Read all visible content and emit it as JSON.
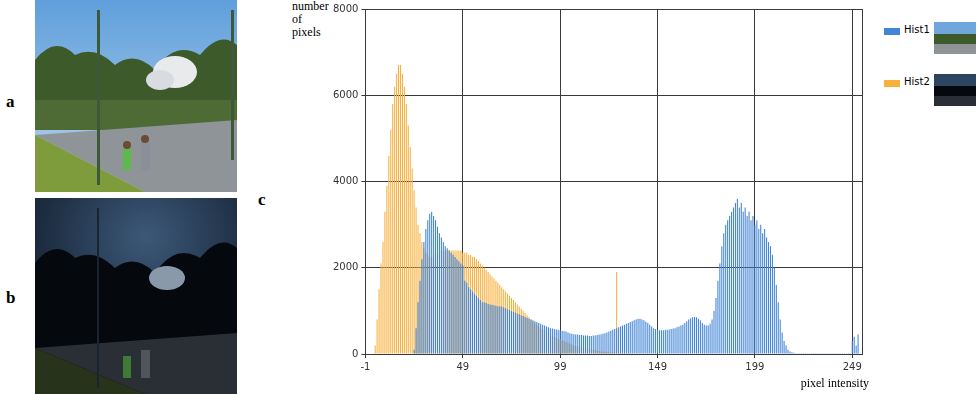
{
  "figure": {
    "panel_labels": [
      "a",
      "b",
      "c"
    ]
  },
  "chart_data": {
    "type": "bar",
    "xlabel": "pixel intensity",
    "ylabel": "number of pixels",
    "xlim": [
      -1,
      254
    ],
    "xticks": [
      -1,
      49,
      99,
      149,
      199,
      249
    ],
    "ylim": [
      0,
      8000
    ],
    "yticks": [
      0,
      2000,
      4000,
      6000,
      8000
    ],
    "grid": true,
    "legend": "top right",
    "x": [
      0,
      1,
      2,
      3,
      4,
      5,
      6,
      7,
      8,
      9,
      10,
      11,
      12,
      13,
      14,
      15,
      16,
      17,
      18,
      19,
      20,
      21,
      22,
      23,
      24,
      25,
      26,
      27,
      28,
      29,
      30,
      31,
      32,
      33,
      34,
      35,
      36,
      37,
      38,
      39,
      40,
      41,
      42,
      43,
      44,
      45,
      46,
      47,
      48,
      49,
      50,
      51,
      52,
      53,
      54,
      55,
      56,
      57,
      58,
      59,
      60,
      61,
      62,
      63,
      64,
      65,
      66,
      67,
      68,
      69,
      70,
      71,
      72,
      73,
      74,
      75,
      76,
      77,
      78,
      79,
      80,
      81,
      82,
      83,
      84,
      85,
      86,
      87,
      88,
      89,
      90,
      91,
      92,
      93,
      94,
      95,
      96,
      97,
      98,
      99,
      100,
      101,
      102,
      103,
      104,
      105,
      106,
      107,
      108,
      109,
      110,
      111,
      112,
      113,
      114,
      115,
      116,
      117,
      118,
      119,
      120,
      121,
      122,
      123,
      124,
      125,
      126,
      127,
      128,
      129,
      130,
      131,
      132,
      133,
      134,
      135,
      136,
      137,
      138,
      139,
      140,
      141,
      142,
      143,
      144,
      145,
      146,
      147,
      148,
      149,
      150,
      151,
      152,
      153,
      154,
      155,
      156,
      157,
      158,
      159,
      160,
      161,
      162,
      163,
      164,
      165,
      166,
      167,
      168,
      169,
      170,
      171,
      172,
      173,
      174,
      175,
      176,
      177,
      178,
      179,
      180,
      181,
      182,
      183,
      184,
      185,
      186,
      187,
      188,
      189,
      190,
      191,
      192,
      193,
      194,
      195,
      196,
      197,
      198,
      199,
      200,
      201,
      202,
      203,
      204,
      205,
      206,
      207,
      208,
      209,
      210,
      211,
      212,
      213,
      214,
      215,
      216,
      217,
      218,
      219,
      220,
      221,
      222,
      223,
      224,
      225,
      226,
      227,
      228,
      229,
      230,
      231,
      232,
      233,
      234,
      235,
      236,
      237,
      238,
      239,
      240,
      241,
      242,
      243,
      244,
      245,
      246,
      247,
      248,
      249,
      250,
      251,
      252,
      253,
      254,
      255
    ],
    "series": [
      {
        "name": "Hist1",
        "color": "#4285d6",
        "values": [
          0,
          0,
          0,
          0,
          0,
          0,
          0,
          0,
          0,
          0,
          0,
          0,
          0,
          0,
          0,
          0,
          0,
          0,
          0,
          0,
          0,
          0,
          0,
          0,
          100,
          600,
          1200,
          1700,
          2200,
          2600,
          2900,
          3100,
          3250,
          3300,
          3200,
          3100,
          2950,
          2800,
          2700,
          2600,
          2500,
          2450,
          2400,
          2350,
          2300,
          2250,
          2200,
          2150,
          2100,
          2050,
          1700,
          1650,
          1550,
          1500,
          1450,
          1400,
          1350,
          1300,
          1250,
          1200,
          1200,
          1180,
          1160,
          1150,
          1140,
          1130,
          1120,
          1110,
          1100,
          1100,
          1080,
          1060,
          1040,
          1020,
          1000,
          980,
          960,
          940,
          920,
          900,
          880,
          860,
          840,
          820,
          800,
          780,
          760,
          740,
          720,
          700,
          680,
          660,
          640,
          620,
          600,
          590,
          580,
          570,
          560,
          550,
          540,
          530,
          520,
          500,
          480,
          470,
          460,
          450,
          450,
          440,
          440,
          430,
          430,
          430,
          420,
          420,
          430,
          430,
          440,
          450,
          460,
          470,
          480,
          500,
          520,
          540,
          560,
          580,
          600,
          620,
          640,
          660,
          680,
          700,
          720,
          740,
          760,
          780,
          800,
          820,
          820,
          800,
          780,
          750,
          720,
          680,
          640,
          600,
          580,
          560,
          550,
          550,
          550,
          560,
          560,
          570,
          580,
          590,
          600,
          620,
          640,
          660,
          680,
          720,
          760,
          800,
          830,
          850,
          860,
          850,
          820,
          780,
          720,
          680,
          660,
          660,
          700,
          800,
          1000,
          1300,
          1700,
          2100,
          2500,
          2800,
          3000,
          3100,
          3200,
          3300,
          3400,
          3500,
          3600,
          3400,
          3500,
          3300,
          3400,
          3200,
          3300,
          3100,
          3200,
          3000,
          3100,
          2900,
          3000,
          2800,
          2900,
          2700,
          2600,
          2500,
          2300,
          2000,
          1600,
          1200,
          800,
          500,
          300,
          200,
          100,
          60,
          40,
          30,
          20,
          20,
          20,
          20,
          20,
          20,
          20,
          20,
          20,
          20,
          20,
          20,
          20,
          20,
          20,
          20,
          20,
          20,
          20,
          20,
          20,
          20,
          20,
          20,
          20,
          20,
          20,
          20,
          20,
          300,
          400,
          200,
          450,
          0,
          0,
          0
        ]
      },
      {
        "name": "Hist2",
        "color": "#f8b03c",
        "values": [
          0,
          0,
          0,
          0,
          200,
          800,
          1500,
          2100,
          2600,
          3300,
          3900,
          4600,
          5200,
          5800,
          6200,
          6500,
          6700,
          6700,
          6500,
          6200,
          5800,
          5300,
          4800,
          4300,
          3800,
          3400,
          3000,
          2800,
          2600,
          2450,
          2350,
          2300,
          2250,
          2250,
          2300,
          2300,
          2350,
          2350,
          2400,
          2400,
          2400,
          2400,
          2400,
          2400,
          2400,
          2400,
          2400,
          2400,
          2400,
          2350,
          2350,
          2350,
          2300,
          2300,
          2250,
          2250,
          2200,
          2150,
          2100,
          2050,
          2000,
          1950,
          1900,
          1850,
          1800,
          1750,
          1700,
          1650,
          1600,
          1550,
          1500,
          1450,
          1400,
          1350,
          1300,
          1250,
          1200,
          1150,
          1100,
          1050,
          1000,
          950,
          900,
          850,
          800,
          760,
          720,
          680,
          640,
          600,
          570,
          540,
          510,
          480,
          450,
          420,
          400,
          380,
          360,
          340,
          320,
          300,
          280,
          260,
          240,
          220,
          200,
          190,
          180,
          170,
          160,
          150,
          140,
          130,
          120,
          110,
          100,
          90,
          80,
          70,
          60,
          60,
          50,
          50,
          50,
          40,
          40,
          40,
          1900,
          40,
          30,
          30,
          30,
          20,
          20,
          20,
          20,
          10,
          10,
          10,
          0,
          0,
          0,
          0,
          0,
          0,
          0,
          0,
          0,
          0,
          0,
          0,
          0,
          0,
          0,
          0,
          0,
          0,
          0,
          0,
          0,
          0,
          0,
          0,
          0,
          0,
          0,
          0,
          0,
          0,
          0,
          0,
          0,
          0,
          0,
          0,
          0,
          0,
          0,
          0,
          0,
          0,
          0,
          0,
          0,
          0,
          0,
          0,
          0,
          0,
          0,
          0,
          0,
          0,
          0,
          0,
          0,
          0,
          0,
          0,
          0,
          0,
          0,
          0,
          0,
          0,
          0,
          0,
          0,
          0,
          0,
          0,
          0,
          0,
          0,
          0,
          0,
          0,
          0,
          0,
          0,
          0,
          0,
          0,
          0,
          0,
          0,
          0,
          0,
          0,
          0,
          0,
          0,
          0,
          0,
          0,
          0,
          0,
          0,
          0,
          0,
          0,
          0,
          0,
          0,
          0,
          0,
          0,
          0,
          0,
          0,
          0,
          0,
          0,
          0,
          0
        ]
      }
    ]
  }
}
